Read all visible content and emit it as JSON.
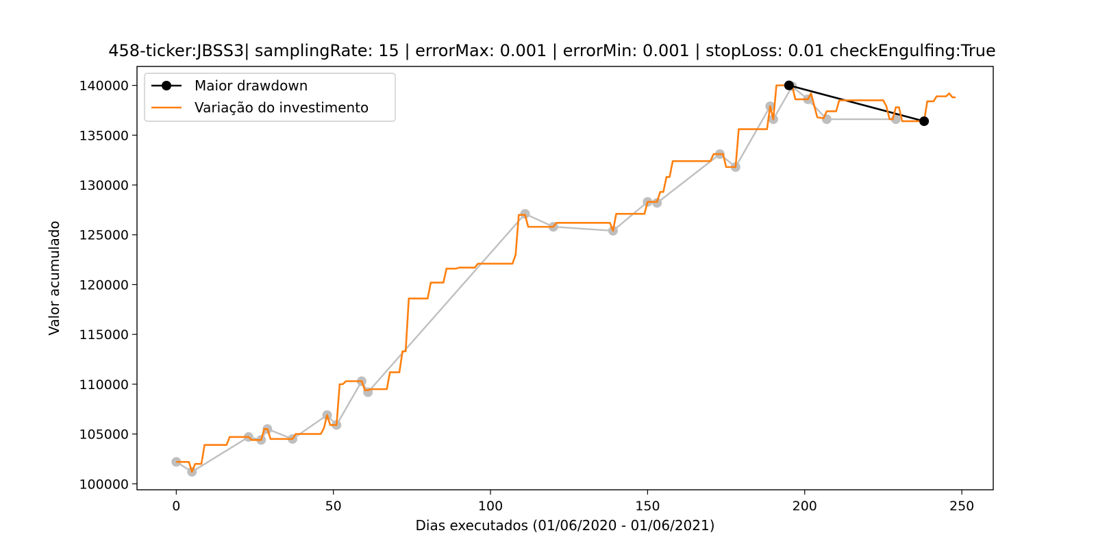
{
  "chart_data": {
    "type": "line",
    "title": "458-ticker:JBSS3| samplingRate: 15 | errorMax: 0.001 | errorMin: 0.001 | stopLoss: 0.01 checkEngulfing:True",
    "xlabel": "Dias executados (01/06/2020 - 01/06/2021)",
    "ylabel": "Valor acumulado",
    "xlim": [
      -12.5,
      260
    ],
    "ylim": [
      99400,
      141900
    ],
    "xticks": [
      0,
      50,
      100,
      150,
      200,
      250
    ],
    "yticks": [
      100000,
      105000,
      110000,
      115000,
      120000,
      125000,
      130000,
      135000,
      140000
    ],
    "grid": false,
    "legend_position": "upper-left",
    "legend": [
      {
        "label": "Maior drawdown",
        "color": "#000000",
        "marker": "circle"
      },
      {
        "label": "Variação do investimento",
        "color": "#ff7f0e",
        "marker": "none"
      }
    ],
    "series": [
      {
        "name": "Variação do investimento",
        "color": "#ff7f0e",
        "points": [
          [
            0,
            102200
          ],
          [
            4,
            102200
          ],
          [
            5,
            101200
          ],
          [
            6,
            102000
          ],
          [
            8,
            102000
          ],
          [
            9,
            103900
          ],
          [
            16,
            103900
          ],
          [
            17,
            104700
          ],
          [
            23,
            104700
          ],
          [
            24,
            104400
          ],
          [
            27,
            104400
          ],
          [
            28,
            105500
          ],
          [
            29,
            105500
          ],
          [
            30,
            104500
          ],
          [
            37,
            104500
          ],
          [
            38,
            105000
          ],
          [
            46,
            105000
          ],
          [
            47,
            105600
          ],
          [
            48,
            106900
          ],
          [
            49,
            105900
          ],
          [
            51,
            105900
          ],
          [
            52,
            110000
          ],
          [
            53,
            110000
          ],
          [
            54,
            110300
          ],
          [
            59,
            110300
          ],
          [
            60,
            109400
          ],
          [
            61,
            109400
          ],
          [
            62,
            109500
          ],
          [
            67,
            109500
          ],
          [
            68,
            111200
          ],
          [
            71,
            111200
          ],
          [
            72,
            113300
          ],
          [
            73,
            113300
          ],
          [
            74,
            118600
          ],
          [
            80,
            118600
          ],
          [
            81,
            120200
          ],
          [
            85,
            120200
          ],
          [
            86,
            121600
          ],
          [
            89,
            121600
          ],
          [
            90,
            121700
          ],
          [
            95,
            121700
          ],
          [
            96,
            122100
          ],
          [
            107,
            122100
          ],
          [
            108,
            123000
          ],
          [
            109,
            127000
          ],
          [
            111,
            127000
          ],
          [
            112,
            125800
          ],
          [
            120,
            125800
          ],
          [
            121,
            126200
          ],
          [
            138,
            126200
          ],
          [
            139,
            125400
          ],
          [
            140,
            127100
          ],
          [
            149,
            127100
          ],
          [
            150,
            128300
          ],
          [
            153,
            128300
          ],
          [
            154,
            129300
          ],
          [
            155,
            129300
          ],
          [
            156,
            130800
          ],
          [
            157,
            130800
          ],
          [
            158,
            132400
          ],
          [
            170,
            132400
          ],
          [
            171,
            133100
          ],
          [
            174,
            133100
          ],
          [
            175,
            131800
          ],
          [
            178,
            131800
          ],
          [
            179,
            135600
          ],
          [
            188,
            135600
          ],
          [
            189,
            137900
          ],
          [
            190,
            136600
          ],
          [
            191,
            140000
          ],
          [
            196,
            140000
          ],
          [
            197,
            138600
          ],
          [
            201,
            138600
          ],
          [
            202,
            139200
          ],
          [
            203,
            138000
          ],
          [
            204,
            136800
          ],
          [
            206,
            136700
          ],
          [
            207,
            137400
          ],
          [
            210,
            137400
          ],
          [
            211,
            138500
          ],
          [
            225,
            138500
          ],
          [
            226,
            137900
          ],
          [
            227,
            136600
          ],
          [
            228,
            136600
          ],
          [
            229,
            137800
          ],
          [
            230,
            137800
          ],
          [
            231,
            136400
          ],
          [
            238,
            136400
          ],
          [
            239,
            138400
          ],
          [
            241,
            138400
          ],
          [
            242,
            138900
          ],
          [
            245,
            138900
          ],
          [
            246,
            139200
          ],
          [
            247,
            138800
          ],
          [
            248,
            138800
          ]
        ]
      },
      {
        "name": "Maior drawdown",
        "color": "#000000",
        "points": [
          [
            195,
            140000
          ],
          [
            238,
            136400
          ]
        ]
      }
    ],
    "pivots": {
      "color": "#bfbfbf",
      "points": [
        [
          0,
          102200
        ],
        [
          5,
          101200
        ],
        [
          23,
          104700
        ],
        [
          27,
          104400
        ],
        [
          29,
          105500
        ],
        [
          37,
          104500
        ],
        [
          48,
          106900
        ],
        [
          51,
          105900
        ],
        [
          59,
          110300
        ],
        [
          61,
          109200
        ],
        [
          111,
          127100
        ],
        [
          120,
          125800
        ],
        [
          139,
          125400
        ],
        [
          150,
          128300
        ],
        [
          153,
          128200
        ],
        [
          173,
          133100
        ],
        [
          178,
          131800
        ],
        [
          189,
          137900
        ],
        [
          190,
          136600
        ],
        [
          196,
          139900
        ],
        [
          201,
          138600
        ],
        [
          207,
          136600
        ],
        [
          229,
          136600
        ]
      ]
    }
  }
}
